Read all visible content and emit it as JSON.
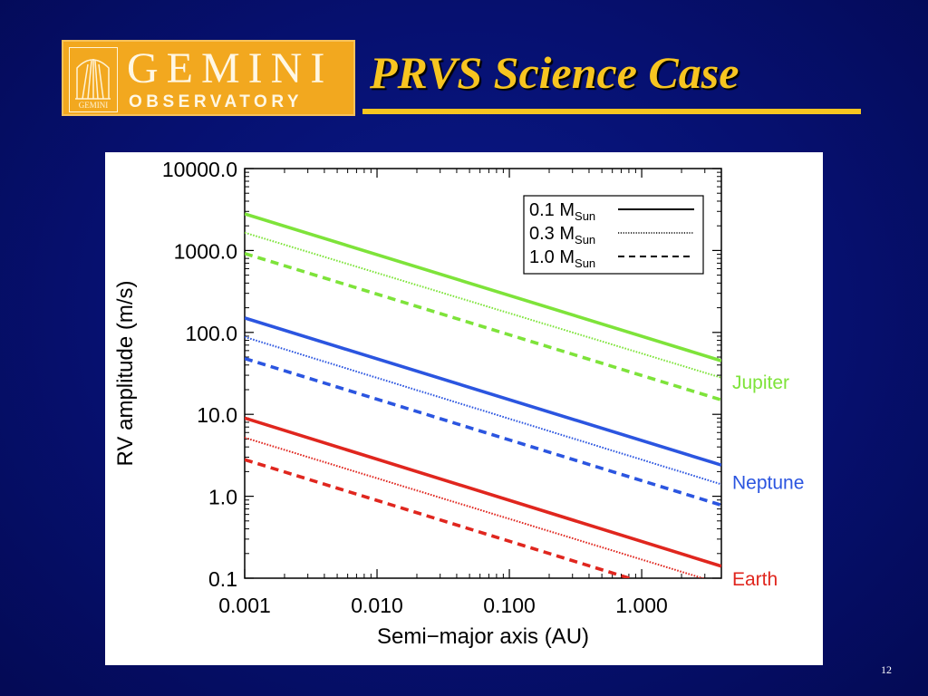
{
  "header": {
    "logo": {
      "name": "GEMINI",
      "subtitle": "OBSERVATORY",
      "emblem_text": "GEMINI"
    },
    "title": "PRVS Science Case"
  },
  "slide_number": "12",
  "colors": {
    "background": "#061070",
    "title": "#f7c520",
    "logo": "#f2a81f",
    "jupiter": "#7ee33a",
    "neptune": "#2b55e0",
    "earth": "#e0261e"
  },
  "chart_data": {
    "type": "line",
    "xlabel": "Semi−major axis (AU)",
    "ylabel": "RV amplitude (m/s)",
    "xscale": "log",
    "yscale": "log",
    "xlim": [
      0.001,
      4
    ],
    "ylim": [
      0.1,
      10000
    ],
    "xticks": [
      "0.001",
      "0.010",
      "0.100",
      "1.000"
    ],
    "yticks": [
      "0.1",
      "1.0",
      "10.0",
      "100.0",
      "1000.0",
      "10000.0"
    ],
    "grid": false,
    "legend": {
      "position": "top-right",
      "entries": [
        {
          "label": "0.1 M",
          "sub": "Sun",
          "style": "solid"
        },
        {
          "label": "0.3 M",
          "sub": "Sun",
          "style": "dotted"
        },
        {
          "label": "1.0 M",
          "sub": "Sun",
          "style": "dashed"
        }
      ]
    },
    "planet_labels": [
      {
        "planet": "jupiter",
        "text": "Jupiter",
        "y_value": 25
      },
      {
        "planet": "neptune",
        "text": "Neptune",
        "y_value": 1.5
      },
      {
        "planet": "earth",
        "text": "Earth",
        "y_value": 0.1
      }
    ],
    "series": [
      {
        "planet": "jupiter",
        "style": "solid",
        "x": [
          0.001,
          4
        ],
        "y": [
          2800,
          45
        ]
      },
      {
        "planet": "jupiter",
        "style": "dotted",
        "x": [
          0.001,
          4
        ],
        "y": [
          1650,
          28
        ]
      },
      {
        "planet": "jupiter",
        "style": "dashed",
        "x": [
          0.001,
          4
        ],
        "y": [
          920,
          15
        ]
      },
      {
        "planet": "neptune",
        "style": "solid",
        "x": [
          0.001,
          4
        ],
        "y": [
          150,
          2.4
        ]
      },
      {
        "planet": "neptune",
        "style": "dotted",
        "x": [
          0.001,
          4
        ],
        "y": [
          88,
          1.4
        ]
      },
      {
        "planet": "neptune",
        "style": "dashed",
        "x": [
          0.001,
          4
        ],
        "y": [
          48,
          0.78
        ]
      },
      {
        "planet": "earth",
        "style": "solid",
        "x": [
          0.001,
          4
        ],
        "y": [
          9.0,
          0.14
        ]
      },
      {
        "planet": "earth",
        "style": "dotted",
        "x": [
          0.001,
          4
        ],
        "y": [
          5.2,
          0.085
        ]
      },
      {
        "planet": "earth",
        "style": "dashed",
        "x": [
          0.001,
          4
        ],
        "y": [
          2.8,
          0.045
        ]
      }
    ]
  }
}
